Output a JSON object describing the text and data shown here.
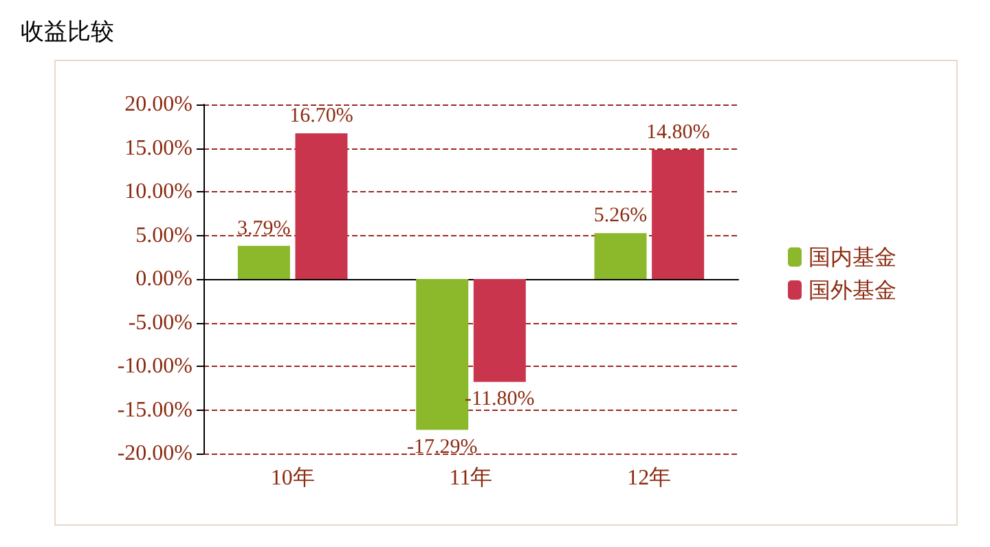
{
  "chart_data": {
    "type": "bar",
    "title": "收益比较",
    "categories": [
      "10年",
      "11年",
      "12年"
    ],
    "series": [
      {
        "name": "国内基金",
        "color": "#8cb82b",
        "values": [
          3.79,
          -17.29,
          5.26
        ],
        "value_labels": [
          "3.79%",
          "-17.29%",
          "5.26%"
        ]
      },
      {
        "name": "国外基金",
        "color": "#c9354d",
        "values": [
          16.7,
          -11.8,
          14.8
        ],
        "value_labels": [
          "16.70%",
          "-11.80%",
          "14.80%"
        ]
      }
    ],
    "ylim": [
      -20,
      20
    ],
    "yticks": [
      {
        "value": -20,
        "label": "-20.00%"
      },
      {
        "value": -15,
        "label": "-15.00%"
      },
      {
        "value": -10,
        "label": "-10.00%"
      },
      {
        "value": -5,
        "label": "-5.00%"
      },
      {
        "value": 0,
        "label": "0.00%"
      },
      {
        "value": 5,
        "label": "5.00%"
      },
      {
        "value": 10,
        "label": "10.00%"
      },
      {
        "value": 15,
        "label": "15.00%"
      },
      {
        "value": 20,
        "label": "20.00%"
      }
    ],
    "grid": "y",
    "legend": "right"
  }
}
